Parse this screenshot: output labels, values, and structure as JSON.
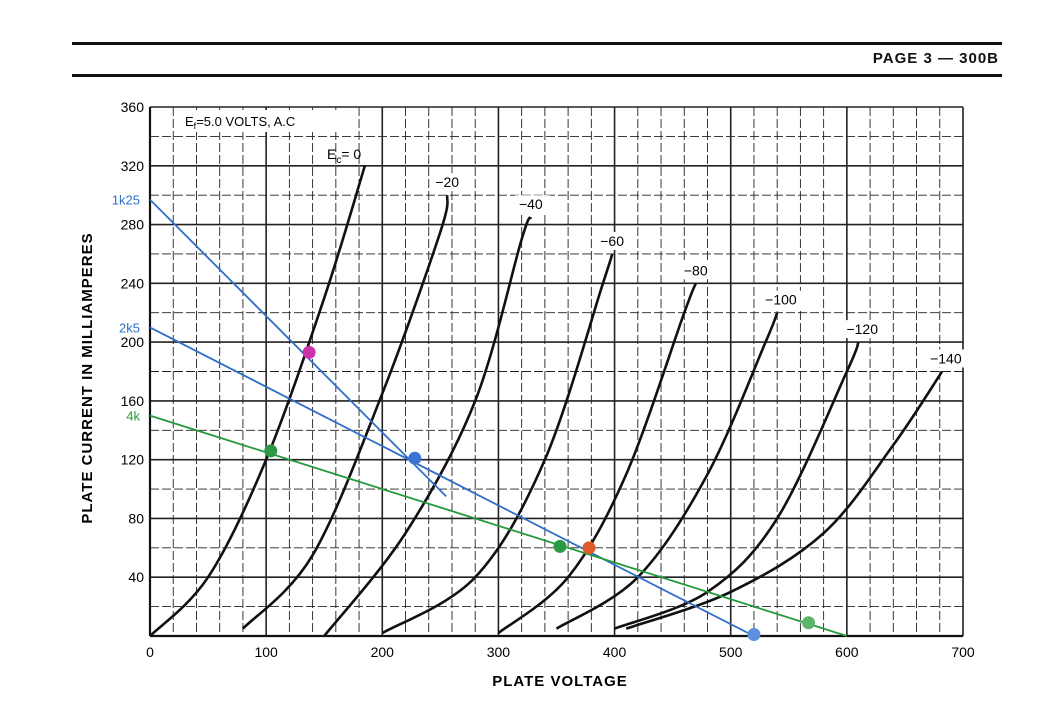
{
  "header": {
    "page_label": "PAGE 3 — 300B"
  },
  "colors": {
    "curve": "#111111",
    "grid": "#222222",
    "load_1k25": "#2f6fc9",
    "load_2k5": "#2f6fc9",
    "load_4k": "#259a3c",
    "point_magenta": "#cc33aa",
    "point_blue": "#3b74d4",
    "point_green": "#2c9a44",
    "point_orange": "#e05b2c",
    "point_light_blue": "#5b8fe0",
    "point_light_green": "#5cb36a"
  },
  "chart_data": {
    "type": "line",
    "title": "",
    "xlabel": "PLATE VOLTAGE",
    "ylabel": "PLATE CURRENT IN MILLIAMPERES",
    "xlim": [
      0,
      700
    ],
    "ylim": [
      0,
      360
    ],
    "grid": true,
    "x_ticks": [
      0,
      100,
      200,
      300,
      400,
      500,
      600,
      700
    ],
    "y_ticks": [
      40,
      80,
      120,
      160,
      200,
      240,
      280,
      320,
      360
    ],
    "annotation_filament": "Ef=5.0 VOLTS, A.C",
    "annotation_filament_main": "E",
    "annotation_filament_sub": "f",
    "annotation_filament_rest": "=5.0  VOLTS, A.C",
    "curve_family_prefix_main": "E",
    "curve_family_prefix_sub": "c",
    "curve_family_prefix_rest": "= 0",
    "series": [
      {
        "name": "0",
        "label": "Ec= 0",
        "x": [
          0,
          50,
          100,
          150,
          185
        ],
        "y": [
          0,
          40,
          120,
          230,
          320
        ]
      },
      {
        "name": "-20",
        "label": "−20",
        "x": [
          80,
          140,
          200,
          250,
          256
        ],
        "y": [
          5,
          55,
          165,
          275,
          300
        ]
      },
      {
        "name": "-40",
        "label": "−40",
        "x": [
          150,
          220,
          280,
          320,
          328
        ],
        "y": [
          0,
          70,
          160,
          270,
          285
        ]
      },
      {
        "name": "-60",
        "label": "−60",
        "x": [
          200,
          280,
          340,
          390,
          398
        ],
        "y": [
          2,
          40,
          120,
          240,
          260
        ]
      },
      {
        "name": "-80",
        "label": "−80",
        "x": [
          300,
          360,
          410,
          460,
          470
        ],
        "y": [
          2,
          40,
          110,
          220,
          240
        ]
      },
      {
        "name": "-100",
        "label": "−100",
        "x": [
          350,
          420,
          480,
          530,
          540
        ],
        "y": [
          5,
          40,
          110,
          200,
          220
        ]
      },
      {
        "name": "-120",
        "label": "−120",
        "x": [
          400,
          480,
          540,
          600,
          610
        ],
        "y": [
          5,
          30,
          80,
          180,
          200
        ]
      },
      {
        "name": "-140",
        "label": "−140",
        "x": [
          410,
          500,
          580,
          640,
          682
        ],
        "y": [
          5,
          30,
          70,
          130,
          180
        ]
      }
    ],
    "load_lines": [
      {
        "name": "1k25",
        "label": "1k25",
        "x": [
          0,
          255
        ],
        "y": [
          297,
          95
        ]
      },
      {
        "name": "2k5",
        "label": "2k5",
        "x": [
          0,
          520
        ],
        "y": [
          210,
          0
        ]
      },
      {
        "name": "4k",
        "label": "4k",
        "x": [
          0,
          600
        ],
        "y": [
          150,
          0
        ]
      }
    ],
    "points": [
      {
        "name": "magenta",
        "x": 137,
        "y": 193
      },
      {
        "name": "blue-mid",
        "x": 228,
        "y": 121
      },
      {
        "name": "green-left",
        "x": 104,
        "y": 126
      },
      {
        "name": "green-mid",
        "x": 353,
        "y": 61
      },
      {
        "name": "orange",
        "x": 378,
        "y": 60
      },
      {
        "name": "blue-end",
        "x": 520,
        "y": 1
      },
      {
        "name": "green-end",
        "x": 567,
        "y": 9
      }
    ]
  }
}
